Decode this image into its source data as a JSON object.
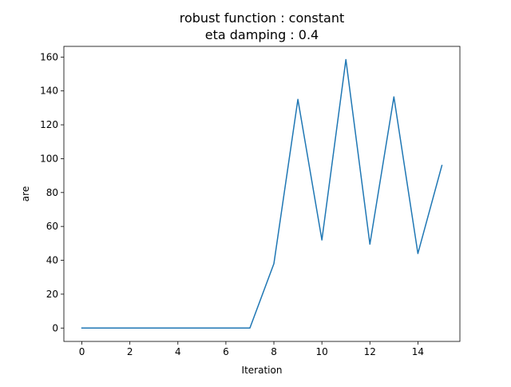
{
  "chart_data": {
    "type": "line",
    "title": "robust function  : constant",
    "subtitle": "eta damping : 0.4",
    "xlabel": "Iteration",
    "ylabel": "are",
    "xlim": [
      -0.75,
      15.75
    ],
    "ylim": [
      -7.9,
      166.3
    ],
    "xticks": [
      0,
      2,
      4,
      6,
      8,
      10,
      12,
      14
    ],
    "yticks": [
      0,
      20,
      40,
      60,
      80,
      100,
      120,
      140,
      160
    ],
    "grid": false,
    "series": [
      {
        "name": "are",
        "color": "#1f77b4",
        "x": [
          0,
          1,
          2,
          3,
          4,
          5,
          6,
          7,
          8,
          9,
          10,
          11,
          12,
          13,
          14,
          15
        ],
        "values": [
          0,
          0,
          0,
          0,
          0,
          0,
          0,
          0,
          38,
          135,
          52,
          158.5,
          49.5,
          136.5,
          44,
          96
        ]
      }
    ]
  }
}
